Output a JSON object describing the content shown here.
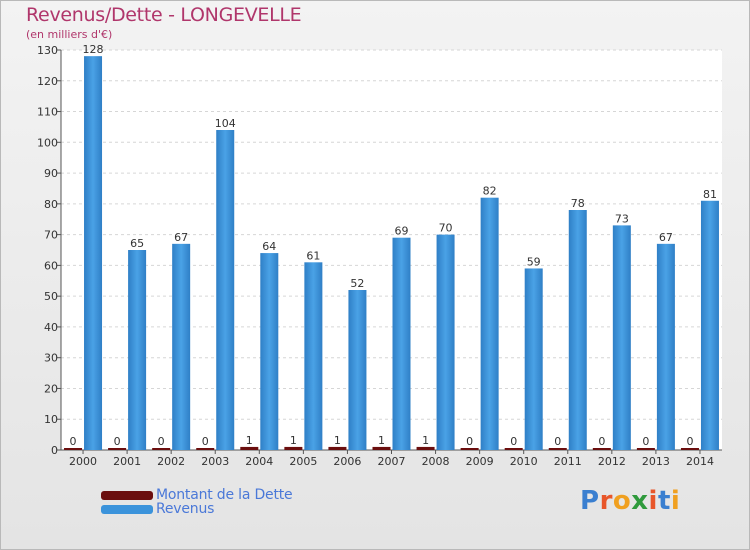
{
  "header": {
    "title": "Revenus/Dette - LONGEVELLE",
    "subtitle": "(en milliers d'€)"
  },
  "legend": {
    "items": [
      {
        "label": "Montant de la Dette",
        "color": "#6b0e0e"
      },
      {
        "label": "Revenus",
        "color": "#3b93db"
      }
    ]
  },
  "logo": {
    "text": "Proxiti",
    "letters": [
      {
        "ch": "P",
        "color": "#3a7fd0"
      },
      {
        "ch": "r",
        "color": "#e8562a"
      },
      {
        "ch": "o",
        "color": "#f0a020"
      },
      {
        "ch": "x",
        "color": "#2f9a3c"
      },
      {
        "ch": "i",
        "color": "#e8562a"
      },
      {
        "ch": "t",
        "color": "#3a7fd0"
      },
      {
        "ch": "i",
        "color": "#f0a020"
      }
    ]
  },
  "chart_data": {
    "type": "bar",
    "title": "Revenus/Dette - LONGEVELLE",
    "subtitle": "(en milliers d'€)",
    "xlabel": "",
    "ylabel": "",
    "ylim": [
      0,
      130
    ],
    "yticks": [
      0,
      10,
      20,
      30,
      40,
      50,
      60,
      70,
      80,
      90,
      100,
      110,
      120,
      130
    ],
    "categories": [
      "2000",
      "2001",
      "2002",
      "2003",
      "2004",
      "2005",
      "2006",
      "2007",
      "2008",
      "2009",
      "2010",
      "2011",
      "2012",
      "2013",
      "2014"
    ],
    "series": [
      {
        "name": "Montant de la Dette",
        "color": "#6b0e0e",
        "values": [
          0,
          0,
          0,
          0,
          1,
          1,
          1,
          1,
          1,
          0,
          0,
          0,
          0,
          0,
          0
        ]
      },
      {
        "name": "Revenus",
        "color": "#3b93db",
        "values": [
          128,
          65,
          67,
          104,
          64,
          61,
          52,
          69,
          70,
          82,
          59,
          78,
          73,
          67,
          81
        ]
      }
    ],
    "grid": true,
    "legend_position": "bottom-left"
  }
}
